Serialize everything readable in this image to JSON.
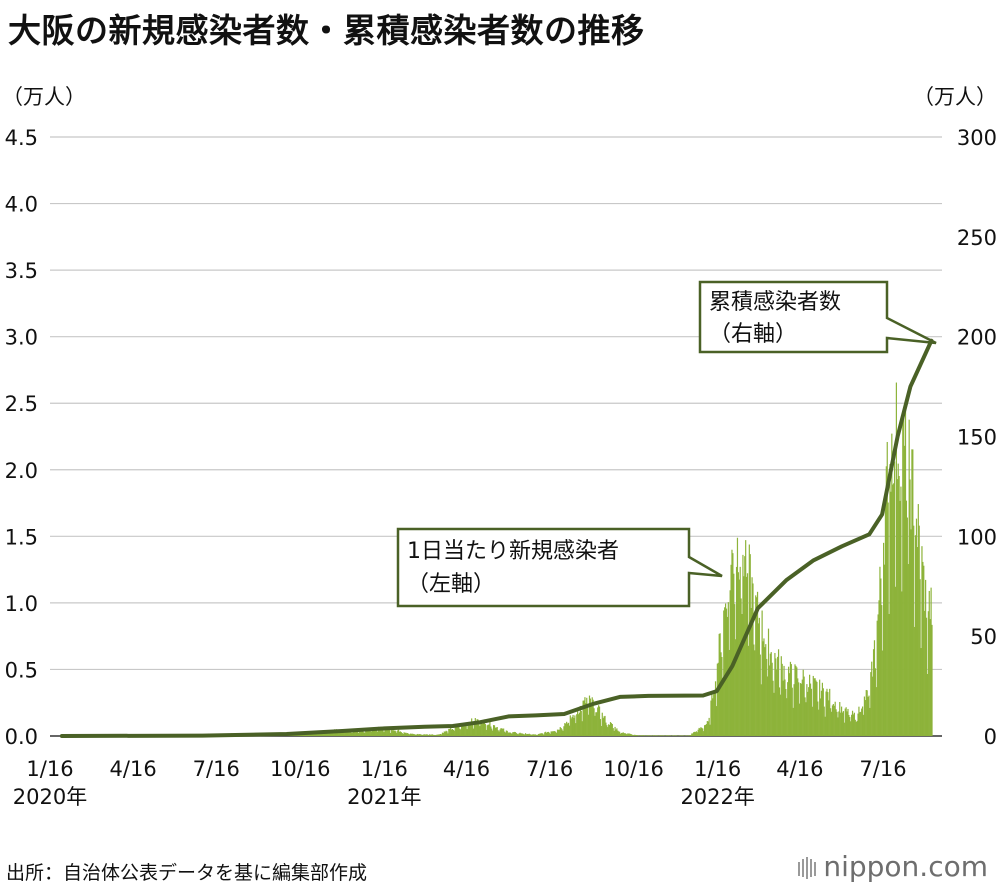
{
  "title": "大阪の新規感染者数・累積感染者数の推移",
  "source": "出所：自治体公表データを基に編集部作成",
  "logo": {
    "text": "nippon.com"
  },
  "colors": {
    "new_cases": "#8db33a",
    "cumulative": "#4a6126",
    "grid": "#c8c8c8",
    "callout_border": "#4a6126",
    "callout_fill": "#ffffff"
  },
  "chart_data": {
    "type": "bar+line",
    "left_axis": {
      "unit_label": "（万人）",
      "ylim": [
        0,
        4.5
      ],
      "ticks": [
        "0.0",
        "0.5",
        "1.0",
        "1.5",
        "2.0",
        "2.5",
        "3.0",
        "3.5",
        "4.0",
        "4.5"
      ]
    },
    "right_axis": {
      "unit_label": "（万人）",
      "ylim": [
        0,
        300
      ],
      "ticks": [
        "0",
        "50",
        "100",
        "150",
        "200",
        "250",
        "300"
      ]
    },
    "x_axis": {
      "ticks": [
        {
          "label": "1/16",
          "year": "2020年",
          "date": "2020-01-16"
        },
        {
          "label": "4/16",
          "year": "",
          "date": "2020-04-16"
        },
        {
          "label": "7/16",
          "year": "",
          "date": "2020-07-16"
        },
        {
          "label": "10/16",
          "year": "",
          "date": "2020-10-16"
        },
        {
          "label": "1/16",
          "year": "2021年",
          "date": "2021-01-16"
        },
        {
          "label": "4/16",
          "year": "",
          "date": "2021-04-16"
        },
        {
          "label": "7/16",
          "year": "",
          "date": "2021-07-16"
        },
        {
          "label": "10/16",
          "year": "",
          "date": "2021-10-16"
        },
        {
          "label": "1/16",
          "year": "2022年",
          "date": "2022-01-16"
        },
        {
          "label": "4/16",
          "year": "",
          "date": "2022-04-16"
        },
        {
          "label": "7/16",
          "year": "",
          "date": "2022-07-16"
        }
      ]
    },
    "series": [
      {
        "name": "1日当たり新規感染者（左軸）",
        "axis": "left",
        "kind": "bar",
        "points": [
          [
            "2020-02-01",
            0.0
          ],
          [
            "2020-03-01",
            0.0
          ],
          [
            "2020-04-10",
            0.008
          ],
          [
            "2020-05-01",
            0.002
          ],
          [
            "2020-06-01",
            0.0
          ],
          [
            "2020-07-15",
            0.005
          ],
          [
            "2020-08-05",
            0.02
          ],
          [
            "2020-09-01",
            0.008
          ],
          [
            "2020-10-01",
            0.007
          ],
          [
            "2020-11-01",
            0.03
          ],
          [
            "2020-11-25",
            0.045
          ],
          [
            "2020-12-20",
            0.04
          ],
          [
            "2021-01-10",
            0.06
          ],
          [
            "2021-01-25",
            0.05
          ],
          [
            "2021-02-15",
            0.015
          ],
          [
            "2021-03-15",
            0.01
          ],
          [
            "2021-04-01",
            0.06
          ],
          [
            "2021-04-20",
            0.11
          ],
          [
            "2021-05-01",
            0.12
          ],
          [
            "2021-05-15",
            0.08
          ],
          [
            "2021-06-01",
            0.03
          ],
          [
            "2021-07-01",
            0.01
          ],
          [
            "2021-07-25",
            0.05
          ],
          [
            "2021-08-10",
            0.15
          ],
          [
            "2021-08-25",
            0.27
          ],
          [
            "2021-09-01",
            0.25
          ],
          [
            "2021-09-15",
            0.12
          ],
          [
            "2021-10-01",
            0.03
          ],
          [
            "2021-10-20",
            0.005
          ],
          [
            "2021-12-15",
            0.003
          ],
          [
            "2022-01-05",
            0.1
          ],
          [
            "2022-01-15",
            0.55
          ],
          [
            "2022-01-25",
            1.05
          ],
          [
            "2022-02-01",
            1.35
          ],
          [
            "2022-02-08",
            1.45
          ],
          [
            "2022-02-15",
            1.35
          ],
          [
            "2022-02-22",
            1.1
          ],
          [
            "2022-03-01",
            0.9
          ],
          [
            "2022-03-15",
            0.62
          ],
          [
            "2022-04-01",
            0.48
          ],
          [
            "2022-04-15",
            0.45
          ],
          [
            "2022-05-01",
            0.38
          ],
          [
            "2022-05-15",
            0.32
          ],
          [
            "2022-06-01",
            0.2
          ],
          [
            "2022-06-15",
            0.15
          ],
          [
            "2022-07-01",
            0.35
          ],
          [
            "2022-07-10",
            0.9
          ],
          [
            "2022-07-20",
            1.9
          ],
          [
            "2022-07-27",
            2.3
          ],
          [
            "2022-08-03",
            2.2
          ],
          [
            "2022-08-10",
            2.1
          ],
          [
            "2022-08-17",
            1.85
          ],
          [
            "2022-08-25",
            1.4
          ],
          [
            "2022-09-01",
            1.0
          ],
          [
            "2022-09-07",
            0.95
          ]
        ]
      },
      {
        "name": "累積感染者数（右軸）",
        "axis": "right",
        "kind": "line",
        "points": [
          [
            "2020-01-29",
            0.0
          ],
          [
            "2020-07-01",
            0.2
          ],
          [
            "2020-10-01",
            1.0
          ],
          [
            "2020-12-01",
            2.5
          ],
          [
            "2021-01-16",
            3.8
          ],
          [
            "2021-03-01",
            4.6
          ],
          [
            "2021-04-01",
            5.0
          ],
          [
            "2021-05-01",
            6.9
          ],
          [
            "2021-06-01",
            9.8
          ],
          [
            "2021-07-01",
            10.3
          ],
          [
            "2021-08-01",
            11.0
          ],
          [
            "2021-09-01",
            16.0
          ],
          [
            "2021-10-01",
            19.6
          ],
          [
            "2021-11-01",
            20.1
          ],
          [
            "2021-12-31",
            20.3
          ],
          [
            "2022-01-15",
            22.5
          ],
          [
            "2022-02-01",
            35.0
          ],
          [
            "2022-03-01",
            64.0
          ],
          [
            "2022-04-01",
            78.0
          ],
          [
            "2022-05-01",
            88.0
          ],
          [
            "2022-06-01",
            95.0
          ],
          [
            "2022-07-01",
            101.0
          ],
          [
            "2022-07-15",
            111.0
          ],
          [
            "2022-08-01",
            150.0
          ],
          [
            "2022-08-15",
            175.0
          ],
          [
            "2022-09-07",
            198.0
          ]
        ]
      }
    ],
    "annotations": [
      {
        "series": "cumulative",
        "lines": [
          "累積感染者数",
          "（右軸）"
        ]
      },
      {
        "series": "new_cases",
        "lines": [
          "1日当たり新規感染者",
          "（左軸）"
        ]
      }
    ]
  }
}
